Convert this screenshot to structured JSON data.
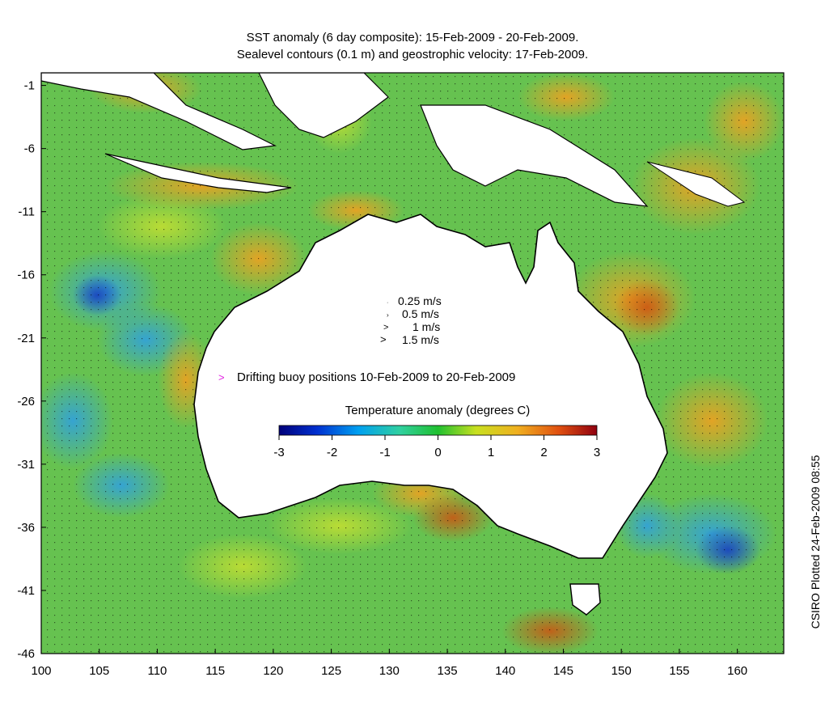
{
  "title_line1": "SST anomaly (6 day composite): 15-Feb-2009 - 20-Feb-2009.",
  "title_line2": "Sealevel contours (0.1 m) and geostrophic velocity: 17-Feb-2009.",
  "credit": "CSIRO Plotted 24-Feb-2009 08:55",
  "x_axis": {
    "min": 100,
    "max": 164,
    "ticks": [
      "100",
      "105",
      "110",
      "115",
      "120",
      "125",
      "130",
      "135",
      "140",
      "145",
      "150",
      "155",
      "160"
    ]
  },
  "y_axis": {
    "min": -46,
    "max": 0,
    "ticks": [
      "-1",
      "-6",
      "-11",
      "-16",
      "-21",
      "-26",
      "-31",
      "-36",
      "-41",
      "-46"
    ]
  },
  "velocity_legend": [
    "0.25 m/s",
    "0.5 m/s",
    "1 m/s",
    "1.5 m/s"
  ],
  "buoy_legend": "Drifting buoy positions 10-Feb-2009 to 20-Feb-2009",
  "colorbar": {
    "title": "Temperature anomaly (degrees C)",
    "ticks": [
      "-3",
      "-2",
      "-1",
      "0",
      "1",
      "2",
      "3"
    ],
    "range": [
      -3,
      3
    ]
  },
  "colors": {
    "land": "#ffffff",
    "sst_warm": "#f0a020",
    "sst_neutral": "#60c050",
    "sst_cool": "#40a0e0",
    "sst_cold": "#2050c0",
    "buoy": "#e020e0",
    "contour": "#e0f0ff"
  }
}
